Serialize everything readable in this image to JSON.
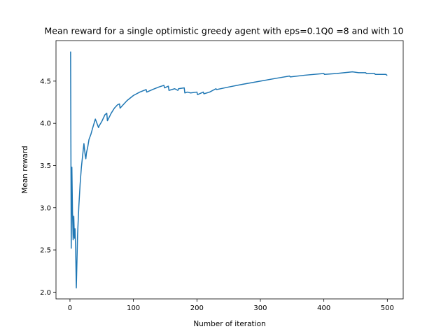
{
  "chart_data": {
    "type": "line",
    "title": "Mean reward for a single optimistic greedy agent with eps=0.1Q0 =8 and with 10",
    "xlabel": "Number of iteration",
    "ylabel": "Mean reward",
    "xlim": [
      -22,
      525
    ],
    "ylim": [
      1.92,
      4.98
    ],
    "xticks": [
      0,
      100,
      200,
      300,
      400,
      500
    ],
    "yticks": [
      2.0,
      2.5,
      3.0,
      3.5,
      4.0,
      4.5
    ],
    "ytick_labels": [
      "2.0",
      "2.5",
      "3.0",
      "3.5",
      "4.0",
      "4.5"
    ],
    "grid": false,
    "series": [
      {
        "color": "#1f77b4",
        "x": [
          1,
          2,
          3,
          4,
          5,
          6,
          7,
          8,
          9,
          10,
          12,
          14,
          16,
          18,
          20,
          22,
          24,
          25,
          26,
          28,
          30,
          33,
          36,
          40,
          45,
          46,
          50,
          55,
          58,
          59,
          65,
          70,
          75,
          78,
          79,
          85,
          90,
          95,
          100,
          110,
          120,
          121,
          130,
          140,
          148,
          149,
          155,
          156,
          165,
          170,
          171,
          180,
          181,
          185,
          190,
          200,
          201,
          210,
          211,
          220,
          230,
          231,
          250,
          270,
          300,
          330,
          346,
          347,
          370,
          400,
          401,
          420,
          445,
          455,
          466,
          467,
          480,
          481,
          490,
          498,
          499,
          500
        ],
        "y": [
          4.85,
          2.52,
          3.48,
          2.95,
          2.62,
          2.9,
          2.64,
          2.75,
          2.5,
          2.05,
          2.68,
          3.02,
          3.28,
          3.48,
          3.62,
          3.76,
          3.62,
          3.58,
          3.65,
          3.72,
          3.81,
          3.87,
          3.95,
          4.05,
          3.95,
          3.97,
          4.02,
          4.1,
          4.12,
          4.03,
          4.12,
          4.18,
          4.22,
          4.23,
          4.18,
          4.23,
          4.27,
          4.3,
          4.33,
          4.37,
          4.4,
          4.37,
          4.4,
          4.43,
          4.45,
          4.42,
          4.44,
          4.39,
          4.41,
          4.39,
          4.41,
          4.42,
          4.36,
          4.37,
          4.36,
          4.37,
          4.34,
          4.37,
          4.35,
          4.37,
          4.41,
          4.4,
          4.43,
          4.46,
          4.5,
          4.54,
          4.56,
          4.55,
          4.57,
          4.59,
          4.58,
          4.59,
          4.61,
          4.6,
          4.6,
          4.59,
          4.59,
          4.58,
          4.58,
          4.58,
          4.57,
          4.57
        ]
      }
    ]
  }
}
